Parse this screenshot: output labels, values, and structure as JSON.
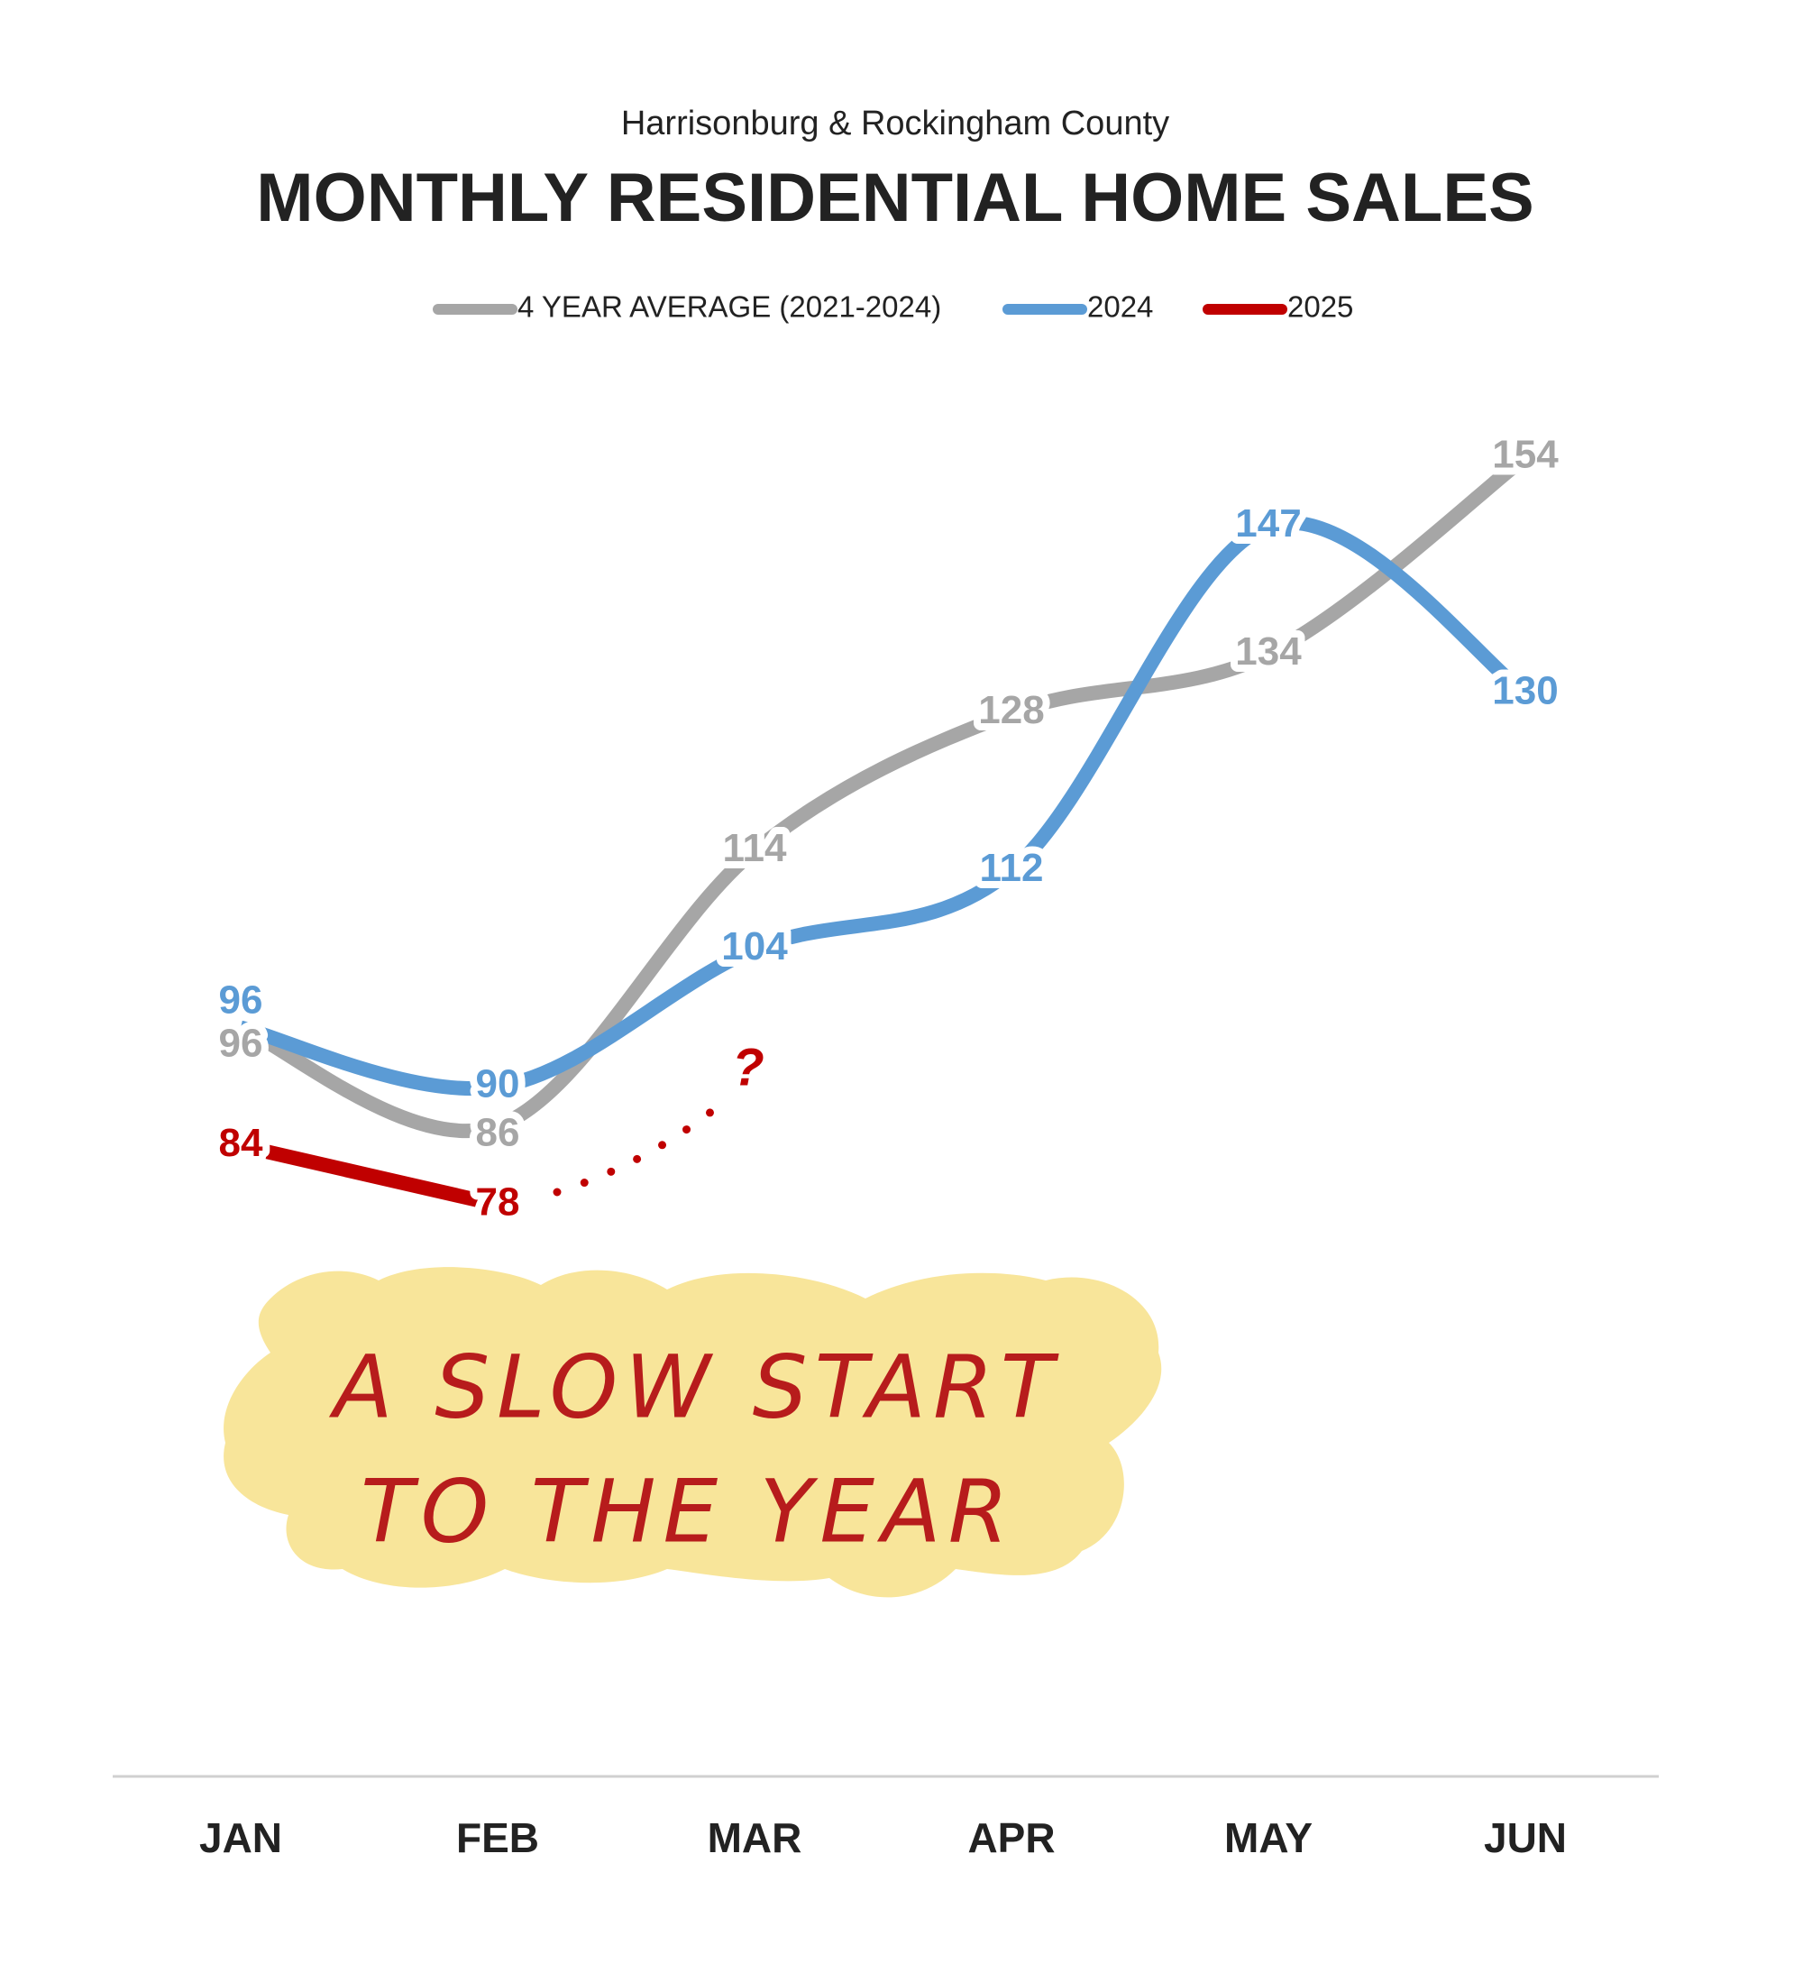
{
  "chart_data": {
    "type": "line",
    "subtitle": "Harrisonburg & Rockingham County",
    "title": "MONTHLY RESIDENTIAL HOME SALES",
    "categories": [
      "JAN",
      "FEB",
      "MAR",
      "APR",
      "MAY",
      "JUN"
    ],
    "series": [
      {
        "name": "4 YEAR AVERAGE (2021-2024)",
        "color": "#a6a6a6",
        "values": [
          96,
          86,
          114,
          128,
          134,
          154
        ]
      },
      {
        "name": "2024",
        "color": "#5b9bd5",
        "values": [
          96,
          90,
          104,
          112,
          147,
          130
        ]
      },
      {
        "name": "2025",
        "color": "#c00000",
        "values": [
          84,
          78,
          null,
          null,
          null,
          null
        ]
      }
    ],
    "legend": "top",
    "annotations": [
      "A SLOW START",
      "TO THE YEAR",
      "?"
    ]
  }
}
